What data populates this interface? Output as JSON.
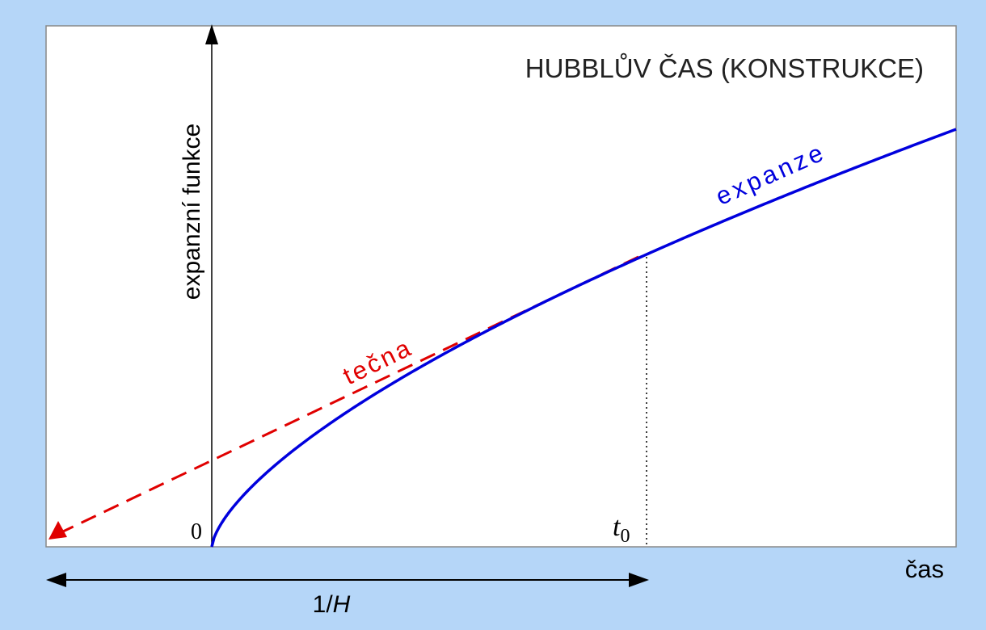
{
  "title": "HUBBLŮV ČAS (KONSTRUKCE)",
  "y_axis_label": "expanzní funkce",
  "x_axis_label": "čas",
  "origin_label": "0",
  "t0_label": {
    "symbol": "t",
    "subscript": "0"
  },
  "tangent_label": "tečna",
  "curve_label": "expanze",
  "interval_label": {
    "prefix": "1/",
    "symbol": "H"
  }
}
